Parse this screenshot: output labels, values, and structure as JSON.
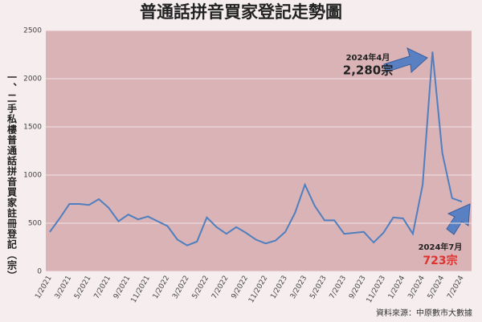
{
  "chart_data": {
    "type": "line",
    "title": "普通話拼音買家登記走勢圖",
    "y_label": "一、二手私樓普通話拼音買家註冊登記（宗）",
    "source": "資料來源：中原數市大數據",
    "categories": [
      "1/2021",
      null,
      "3/2021",
      null,
      "5/2021",
      null,
      "7/2021",
      null,
      "9/2021",
      null,
      "11/2021",
      null,
      "1/2022",
      null,
      "3/2022",
      null,
      "5/2022",
      null,
      "7/2022",
      null,
      "9/2022",
      null,
      "11/2022",
      null,
      "1/2023",
      null,
      "3/2023",
      null,
      "5/2023",
      null,
      "7/2023",
      null,
      "9/2023",
      null,
      "11/2023",
      null,
      "1/2024",
      null,
      "3/2024",
      null,
      "5/2024",
      null,
      "7/2024"
    ],
    "series": [
      {
        "name": "普通話拼音買家登記",
        "color": "#4f7fbf",
        "values": [
          410,
          550,
          700,
          700,
          690,
          750,
          660,
          520,
          590,
          540,
          570,
          520,
          470,
          330,
          270,
          310,
          560,
          460,
          390,
          460,
          400,
          330,
          290,
          320,
          410,
          610,
          900,
          680,
          530,
          530,
          390,
          400,
          410,
          300,
          400,
          560,
          550,
          390,
          900,
          2280,
          1230,
          760,
          723
        ],
        "value_labels": [
          null,
          null,
          null,
          null,
          null,
          null,
          null,
          null,
          null,
          null,
          null,
          null,
          null,
          null,
          null,
          null,
          null,
          null,
          null,
          null,
          null,
          null,
          null,
          null,
          null,
          null,
          null,
          null,
          null,
          null,
          null,
          null,
          null,
          null,
          null,
          null,
          null,
          null,
          null,
          "2,280宗",
          null,
          null,
          "723宗"
        ]
      }
    ],
    "annotations": [
      "2024年4月",
      "2024年7月"
    ],
    "ylim": [
      0,
      2500
    ],
    "yticks": [
      0,
      500,
      1000,
      1500,
      2000,
      2500
    ],
    "grid": true
  }
}
